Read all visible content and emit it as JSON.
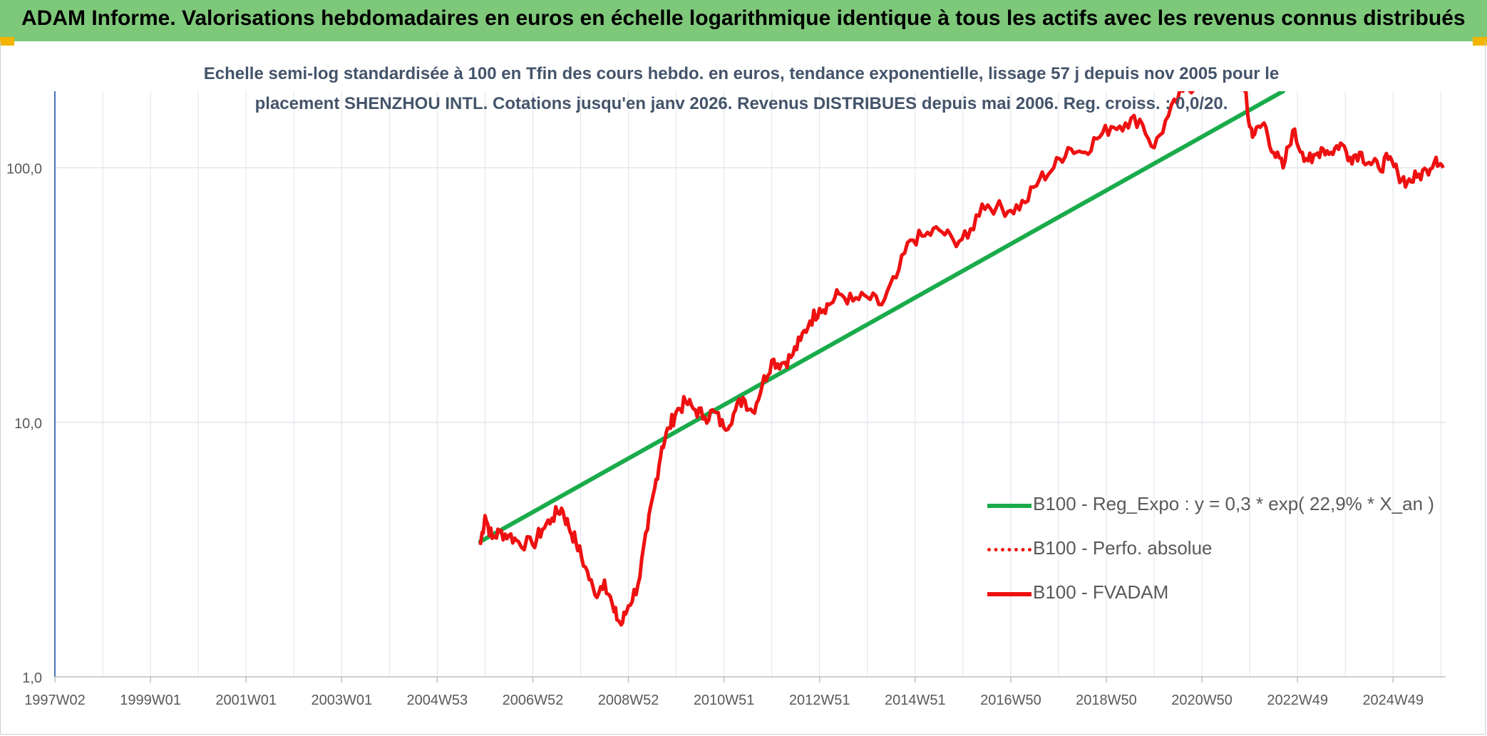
{
  "header": {
    "title": "ADAM Informe. Valorisations hebdomadaires en euros en échelle logarithmique identique à tous les actifs avec les revenus connus distribués"
  },
  "colors": {
    "banner": "#7ec87a",
    "corner_accent": "#f2b400",
    "trend": "#1aab4b",
    "fvadam": "#ee1111",
    "grid": "#dde3ea",
    "axis": "#4a74b8"
  },
  "chart_data": {
    "type": "line",
    "subtitle_line1": "Echelle semi-log standardisée à 100 en Tfin des cours hebdo. en euros, tendance exponentielle, lissage 57 j depuis nov 2005 pour le",
    "subtitle_line2": "placement SHENZHOU INTL. Cotations jusqu'en janv 2026. Revenus DISTRIBUES depuis mai 2006. Reg. croiss. : 0,0/20.",
    "y_scale": "log",
    "ylim": [
      1,
      200
    ],
    "y_ticks": [
      {
        "value": 1,
        "label": "1,0"
      },
      {
        "value": 10,
        "label": "10,0"
      },
      {
        "value": 100,
        "label": "100,0"
      }
    ],
    "x_range": [
      1997.0,
      2026.1
    ],
    "x_ticks": [
      {
        "value": 1997.0,
        "label": "1997W02"
      },
      {
        "value": 1999.0,
        "label": "1999W01"
      },
      {
        "value": 2001.0,
        "label": "2001W01"
      },
      {
        "value": 2003.0,
        "label": "2003W01"
      },
      {
        "value": 2005.0,
        "label": "2004W53"
      },
      {
        "value": 2007.0,
        "label": "2006W52"
      },
      {
        "value": 2009.0,
        "label": "2008W52"
      },
      {
        "value": 2011.0,
        "label": "2010W51"
      },
      {
        "value": 2013.0,
        "label": "2012W51"
      },
      {
        "value": 2015.0,
        "label": "2014W51"
      },
      {
        "value": 2017.0,
        "label": "2016W50"
      },
      {
        "value": 2019.0,
        "label": "2018W50"
      },
      {
        "value": 2021.0,
        "label": "2020W50"
      },
      {
        "value": 2023.0,
        "label": "2022W49"
      },
      {
        "value": 2025.0,
        "label": "2024W49"
      }
    ],
    "grid": true,
    "legend_position": "right",
    "series": [
      {
        "name": "B100 - Reg_Expo : y = 0,3 * exp( 22,9% *  X_an )",
        "style": "solid-green",
        "x": [
          2005.9,
          2022.7
        ],
        "y": [
          3.4,
          200
        ]
      },
      {
        "name": "B100 - Perfo. absolue",
        "style": "dotted-red",
        "x": [],
        "y": []
      },
      {
        "name": "B100 - FVADAM",
        "style": "solid-red",
        "x": [
          2005.9,
          2006.0,
          2006.15,
          2006.3,
          2006.5,
          2006.7,
          2007.0,
          2007.2,
          2007.4,
          2007.6,
          2007.75,
          2007.9,
          2008.1,
          2008.3,
          2008.5,
          2008.7,
          2008.85,
          2009.0,
          2009.2,
          2009.4,
          2009.55,
          2009.7,
          2009.85,
          2010.0,
          2010.2,
          2010.4,
          2010.6,
          2010.8,
          2011.0,
          2011.2,
          2011.4,
          2011.6,
          2011.8,
          2012.0,
          2012.2,
          2012.4,
          2012.6,
          2012.8,
          2013.0,
          2013.2,
          2013.4,
          2013.7,
          2014.0,
          2014.3,
          2014.6,
          2014.9,
          2015.2,
          2015.5,
          2015.8,
          2016.1,
          2016.4,
          2016.7,
          2017.0,
          2017.3,
          2017.6,
          2017.9,
          2018.2,
          2018.5,
          2018.8,
          2019.1,
          2019.4,
          2019.7,
          2020.0,
          2020.3,
          2020.6,
          2020.9,
          2021.2,
          2021.5,
          2021.7,
          2021.9,
          2022.0,
          2022.1,
          2022.3,
          2022.5,
          2022.7,
          2022.9,
          2023.1,
          2023.3,
          2023.5,
          2023.7,
          2023.9,
          2024.1,
          2024.3,
          2024.5,
          2024.7,
          2024.9,
          2025.1,
          2025.3,
          2025.5,
          2025.7,
          2025.9,
          2026.05
        ],
        "y": [
          3.3,
          4.3,
          3.5,
          3.7,
          3.6,
          3.4,
          3.3,
          3.8,
          4.2,
          4.6,
          3.9,
          3.4,
          2.7,
          2.1,
          2.4,
          1.8,
          1.6,
          1.9,
          2.3,
          3.8,
          5.5,
          8.0,
          9.5,
          11.0,
          12.0,
          11.2,
          10.5,
          11.0,
          9.5,
          10.8,
          12.5,
          11.0,
          14.0,
          17.5,
          17.0,
          18.0,
          21.0,
          25.0,
          28.0,
          29.0,
          32.0,
          30.0,
          31.0,
          29.0,
          37.0,
          52.0,
          54.0,
          57.0,
          52.0,
          53.0,
          72.0,
          70.0,
          68.0,
          73.0,
          90.0,
          100.0,
          120.0,
          115.0,
          130.0,
          145.0,
          150.0,
          155.0,
          120.0,
          160.0,
          200.0,
          215.0,
          230.0,
          240.0,
          235.0,
          200.0,
          145.0,
          135.0,
          150.0,
          115.0,
          100.0,
          140.0,
          115.0,
          105.0,
          120.0,
          115.0,
          125.0,
          110.0,
          115.0,
          105.0,
          100.0,
          108.0,
          95.0,
          88.0,
          92.0,
          98.0,
          110.0,
          100.0
        ]
      }
    ]
  }
}
